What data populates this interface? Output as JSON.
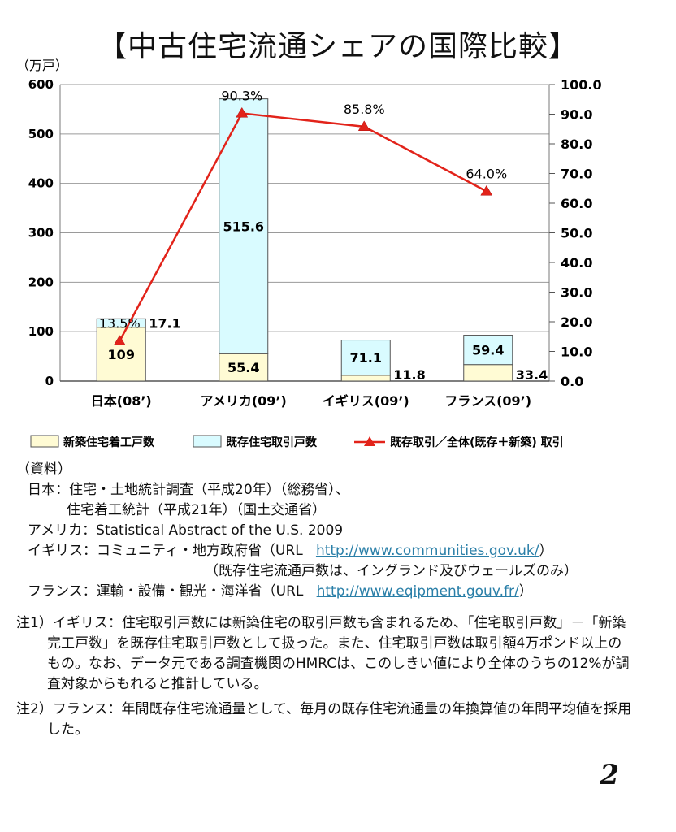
{
  "title": "【中古住宅流通シェアの国際比較】",
  "chart_data": {
    "type": "bar",
    "stacked": true,
    "left_axis_unit": "（万戸）",
    "left_ylim": [
      0,
      600
    ],
    "left_ticks": [
      "0",
      "100",
      "200",
      "300",
      "400",
      "500",
      "600"
    ],
    "right_ylim": [
      0,
      100
    ],
    "right_ticks": [
      "0.0",
      "10.0",
      "20.0",
      "30.0",
      "40.0",
      "50.0",
      "60.0",
      "70.0",
      "80.0",
      "90.0",
      "100.0"
    ],
    "categories": [
      "日本(08’)",
      "アメリカ(09’)",
      "イギリス(09’)",
      "フランス(09’)"
    ],
    "series": [
      {
        "name": "新築住宅着工戸数",
        "values": [
          109,
          55.4,
          11.8,
          33.4
        ],
        "labels": [
          "109",
          "55.4",
          "11.8",
          "33.4"
        ],
        "color": "#fffbd4"
      },
      {
        "name": "既存住宅取引戸数",
        "values": [
          17.1,
          515.6,
          71.1,
          59.4
        ],
        "labels": [
          "17.1",
          "515.6",
          "71.1",
          "59.4"
        ],
        "color": "#d9fbff"
      }
    ],
    "line": {
      "name": "既存取引／全体(既存＋新築) 取引",
      "values": [
        13.5,
        90.3,
        85.8,
        64.0
      ],
      "labels": [
        "13.5%",
        "90.3%",
        "85.8%",
        "64.0%"
      ],
      "color": "#e2231a"
    },
    "grid": true,
    "legend": "bottom"
  },
  "notes": {
    "header": "（資料）",
    "japan_1": "日本：住宅・土地統計調査（平成20年）（総務省）、",
    "japan_2": "住宅着工統計（平成21年）（国土交通省）",
    "usa": "アメリカ：Statistical Abstract of the U.S. 2009",
    "uk_prefix": "イギリス：コミュニティ・地方政府省（URL",
    "uk_url": "http://www.communities.gov.uk/",
    "uk_suffix": "）",
    "uk_2": "（既存住宅流通戸数は、イングランド及びウェールズのみ）",
    "fr_prefix": "フランス：運輸・設備・観光・海洋省（URL",
    "fr_url": "http://www.eqipment.gouv.fr/",
    "fr_suffix": "）",
    "footnote_1": "注1）イギリス：住宅取引戸数には新築住宅の取引戸数も含まれるため、「住宅取引戸数」－「新築完工戸数」を既存住宅取引戸数として扱った。また、住宅取引戸数は取引額4万ポンド以上のもの。なお、データ元である調査機関のHMRCは、このしきい値により全体のうちの12%が調査対象からもれると推計している。",
    "footnote_2": "注2）フランス：年間既存住宅流通量として、毎月の既存住宅流通量の年換算値の年間平均値を採用した。"
  },
  "page_number": "2"
}
